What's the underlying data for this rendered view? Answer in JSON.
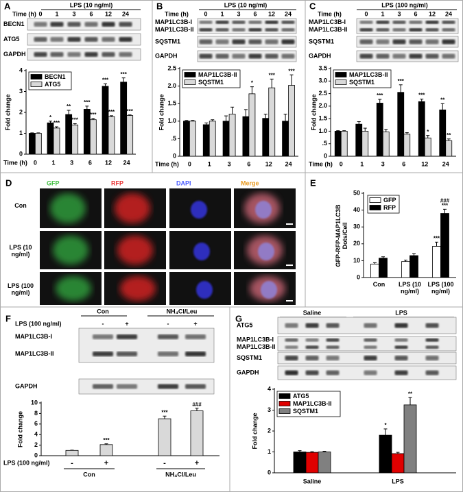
{
  "figure": {
    "panel_labels": [
      "A",
      "B",
      "C",
      "D",
      "E",
      "F",
      "G"
    ],
    "blots": [
      {
        "headers": [
          "LPS (10 ng/ml)"
        ],
        "row_label": "Time (h)",
        "lanes": [
          "0",
          "1",
          "3",
          "6",
          "12",
          "24"
        ],
        "rows": [
          [
            "BECN1"
          ],
          [
            "ATG5"
          ],
          [
            "GAPDH"
          ]
        ]
      },
      {
        "headers": [
          "LPS (10 ng/ml)"
        ],
        "row_label": "Time (h)",
        "lanes": [
          "0",
          "1",
          "3",
          "6",
          "12",
          "24"
        ],
        "rows": [
          [
            "MAP1LC3B-I",
            "MAP1LC3B-II"
          ],
          [
            "SQSTM1"
          ],
          [
            "GAPDH"
          ]
        ]
      },
      {
        "headers": [
          "LPS (100 ng/ml)"
        ],
        "row_label": "Time (h)",
        "lanes": [
          "0",
          "1",
          "3",
          "6",
          "12",
          "24"
        ],
        "rows": [
          [
            "MAP1LC3B-I",
            "MAP1LC3B-II"
          ],
          [
            "SQSTM1"
          ],
          [
            "GAPDH"
          ]
        ]
      },
      {
        "headers": [
          "Con",
          "NH₄Cl/Leu"
        ],
        "row_label": "LPS (100 ng/ml)",
        "lanes": [
          "-",
          "+",
          "-",
          "+"
        ],
        "rows": [
          [
            "MAP1LC3B-I",
            "MAP1LC3B-II"
          ],
          [
            "GAPDH"
          ]
        ]
      },
      {
        "headers": [
          "Saline",
          "LPS"
        ],
        "rows": [
          [
            "ATG5"
          ],
          [
            "MAP1LC3B-I",
            "MAP1LC3B-II"
          ],
          [
            "SQSTM1"
          ],
          [
            "GAPDH"
          ]
        ]
      }
    ],
    "microscopy": {
      "columns": [
        "GFP",
        "RFP",
        "DAPI",
        "Merge"
      ],
      "rows": [
        "Con",
        "LPS (10 ng/ml)",
        "LPS (100 ng/ml)"
      ]
    }
  },
  "chart_data": [
    {
      "type": "bar",
      "ylabel": "Fold change",
      "xlabel": "Time (h)",
      "categories": [
        "0",
        "1",
        "3",
        "6",
        "12",
        "24"
      ],
      "ylim": [
        0,
        4
      ],
      "yticks": [
        0,
        1,
        2,
        3,
        4
      ],
      "series": [
        {
          "name": "BECN1",
          "color": "#000000",
          "values": [
            1,
            1.5,
            1.9,
            2.15,
            3.25,
            3.45
          ],
          "errors": [
            0.02,
            0.08,
            0.2,
            0.15,
            0.12,
            0.2
          ],
          "stars": [
            null,
            "*",
            "**",
            "***",
            "***",
            "***"
          ]
        },
        {
          "name": "ATG5",
          "color": "#d9d9d9",
          "values": [
            1,
            1.25,
            1.4,
            1.65,
            1.8,
            1.85
          ],
          "errors": [
            0.02,
            0.06,
            0.06,
            0.06,
            0.04,
            0.03
          ],
          "stars": [
            null,
            "***",
            "***",
            "***",
            "***",
            "***"
          ]
        }
      ]
    },
    {
      "type": "bar",
      "ylabel": "Fold change",
      "xlabel": "Time (h)",
      "categories": [
        "0",
        "1",
        "3",
        "6",
        "12",
        "24"
      ],
      "ylim": [
        0,
        2.5
      ],
      "yticks": [
        0,
        {
          "value": 0.5,
          "label": ".5"
        },
        {
          "value": 1,
          "label": "1.0"
        },
        1.5,
        {
          "value": 2,
          "label": "2.0"
        },
        2.5
      ],
      "series": [
        {
          "name": "MAP1LC3B-II",
          "color": "#000000",
          "values": [
            1,
            0.9,
            1.0,
            1.13,
            1.08,
            1.0
          ],
          "errors": [
            0.02,
            0.05,
            0.15,
            0.2,
            0.12,
            0.2
          ],
          "stars": [
            null,
            null,
            null,
            null,
            null,
            null
          ]
        },
        {
          "name": "SQSTM1",
          "color": "#d9d9d9",
          "values": [
            1,
            1.0,
            1.2,
            1.78,
            1.95,
            2.02
          ],
          "errors": [
            0.02,
            0.04,
            0.2,
            0.2,
            0.25,
            0.3
          ],
          "stars": [
            null,
            null,
            null,
            "*",
            "***",
            "***"
          ]
        }
      ]
    },
    {
      "type": "bar",
      "ylabel": "Fold change",
      "xlabel": "Time (h)",
      "categories": [
        "0",
        "1",
        "3",
        "6",
        "12",
        "24"
      ],
      "ylim": [
        0,
        3.5
      ],
      "yticks": [
        0,
        {
          "value": 0.5,
          "label": ".5"
        },
        {
          "value": 1,
          "label": "1.0"
        },
        1.5,
        {
          "value": 2,
          "label": "2.0"
        },
        2.5,
        {
          "value": 3,
          "label": "3.0"
        },
        3.5
      ],
      "series": [
        {
          "name": "MAP1LC3B-II",
          "color": "#000000",
          "values": [
            1,
            1.28,
            2.12,
            2.55,
            2.18,
            1.85
          ],
          "errors": [
            0.02,
            0.1,
            0.15,
            0.3,
            0.1,
            0.25
          ],
          "stars": [
            null,
            null,
            "***",
            "***",
            "***",
            "**"
          ]
        },
        {
          "name": "SQSTM1",
          "color": "#d9d9d9",
          "values": [
            1,
            1.0,
            0.97,
            0.88,
            0.73,
            0.62
          ],
          "errors": [
            0.02,
            0.12,
            0.1,
            0.06,
            0.1,
            0.07
          ],
          "stars": [
            null,
            null,
            null,
            null,
            "*",
            "**"
          ]
        }
      ]
    },
    {
      "type": "bar",
      "ylabel": "GFP-RFP-MAP1LC3B Dots/Cell",
      "categories": [
        "Con",
        "LPS (10 ng/ml)",
        "LPS (100 ng/ml)"
      ],
      "ylim": [
        0,
        50
      ],
      "yticks": [
        0,
        10,
        20,
        30,
        40,
        50
      ],
      "series": [
        {
          "name": "GFP",
          "color": "#ffffff",
          "values": [
            8,
            9.5,
            18.5
          ],
          "errors": [
            0.8,
            0.8,
            2.5
          ],
          "stars": [
            null,
            null,
            "***"
          ]
        },
        {
          "name": "RFP",
          "color": "#000000",
          "values": [
            11.5,
            13,
            38
          ],
          "errors": [
            0.8,
            1.2,
            2.5
          ],
          "stars": [
            null,
            null,
            "***"
          ],
          "hashes": [
            null,
            null,
            "###"
          ]
        }
      ]
    },
    {
      "type": "bar",
      "ylabel": "Fold change",
      "x_row_label": "LPS (100 ng/ml)",
      "categories": [
        "-",
        "+",
        "-",
        "+"
      ],
      "groups": [
        "Con",
        "NH₄Cl/Leu"
      ],
      "ylim": [
        0,
        10
      ],
      "yticks": [
        0,
        2,
        4,
        6,
        8,
        10
      ],
      "color": "#d9d9d9",
      "values": [
        1,
        2.1,
        7.0,
        8.5
      ],
      "errors": [
        0.05,
        0.15,
        0.5,
        0.5
      ],
      "stars": [
        null,
        "***",
        "***",
        null
      ],
      "hashes": [
        null,
        null,
        null,
        "###"
      ]
    },
    {
      "type": "bar",
      "ylabel": "Fold change",
      "categories": [
        "Saline",
        "LPS"
      ],
      "ylim": [
        0,
        4
      ],
      "yticks": [
        0,
        1,
        2,
        3,
        4
      ],
      "series": [
        {
          "name": "ATG5",
          "color": "#000000",
          "values": [
            1,
            1.8
          ],
          "errors": [
            0.06,
            0.3
          ],
          "stars": [
            null,
            "*"
          ]
        },
        {
          "name": "MAP1LC3B-II",
          "color": "#e00000",
          "values": [
            0.98,
            0.92
          ],
          "errors": [
            0.03,
            0.06
          ],
          "stars": [
            null,
            null
          ]
        },
        {
          "name": "SQSTM1",
          "color": "#808080",
          "values": [
            1.0,
            3.25
          ],
          "errors": [
            0.03,
            0.35
          ],
          "stars": [
            null,
            "**"
          ]
        }
      ]
    }
  ]
}
